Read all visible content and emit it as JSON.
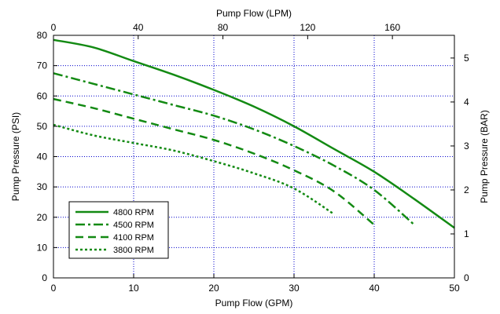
{
  "chart_data": {
    "type": "line",
    "xlabel": "Pump Flow (GPM)",
    "ylabel": "Pump Pressure (PSI)",
    "x2label": "Pump Flow (LPM)",
    "y2label": "Pump Pressure (BAR)",
    "xlim": [
      0,
      50
    ],
    "ylim": [
      0,
      80
    ],
    "x2lim": [
      0,
      189.27
    ],
    "y2lim": [
      0,
      5.516
    ],
    "xticks": [
      0,
      10,
      20,
      30,
      40,
      50
    ],
    "yticks": [
      0,
      10,
      20,
      30,
      40,
      50,
      60,
      70,
      80
    ],
    "x2ticks": [
      0,
      40,
      80,
      120,
      160
    ],
    "y2ticks": [
      0,
      1,
      2,
      3,
      4,
      5
    ],
    "xticklabels": [
      "0",
      "10",
      "20",
      "30",
      "40",
      "50"
    ],
    "yticklabels": [
      "0",
      "10",
      "20",
      "30",
      "40",
      "50",
      "60",
      "70",
      "80"
    ],
    "x2ticklabels": [
      "0",
      "40",
      "80",
      "120",
      "160"
    ],
    "y2ticklabels": [
      "0",
      "1",
      "2",
      "3",
      "4",
      "5"
    ],
    "grid": true,
    "legend_position": "bottom-left",
    "line_color": "#138a13",
    "grid_color": "#0000cc",
    "series": [
      {
        "name": "4800 RPM",
        "style": "solid",
        "x": [
          0,
          5,
          10,
          15,
          20,
          25,
          30,
          35,
          40,
          45,
          50
        ],
        "y": [
          78.5,
          76,
          71.5,
          67,
          62,
          56.5,
          50,
          42.5,
          35,
          26,
          16.5
        ]
      },
      {
        "name": "4500 RPM",
        "style": "dashdot",
        "x": [
          0,
          5,
          10,
          15,
          20,
          25,
          30,
          35,
          40,
          45
        ],
        "y": [
          67.5,
          64,
          60.5,
          57,
          53.5,
          49,
          43.5,
          37,
          29,
          17.5
        ]
      },
      {
        "name": "4100 RPM",
        "style": "dashed",
        "x": [
          0,
          5,
          10,
          15,
          20,
          25,
          30,
          35,
          40
        ],
        "y": [
          59,
          56,
          52.5,
          49,
          45.5,
          41,
          35.5,
          28.5,
          17.5
        ]
      },
      {
        "name": "3800 RPM",
        "style": "dotted",
        "x": [
          0,
          5,
          10,
          15,
          20,
          25,
          30,
          35
        ],
        "y": [
          50.5,
          47,
          44.5,
          42,
          38.5,
          34.5,
          29.5,
          21
        ]
      }
    ]
  }
}
